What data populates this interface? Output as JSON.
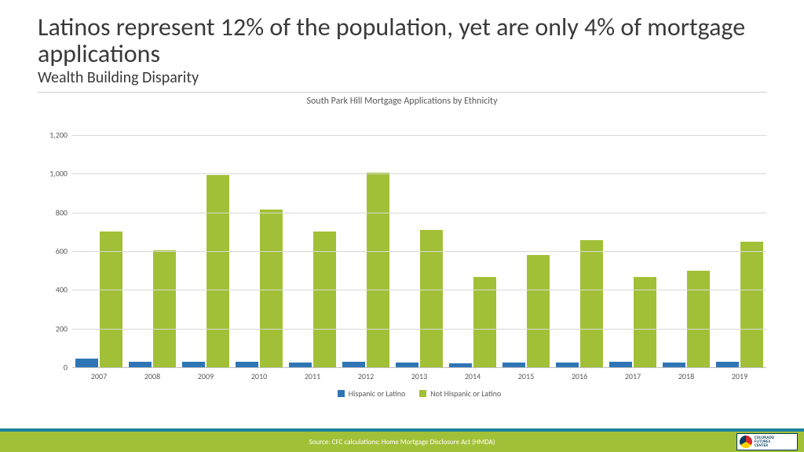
{
  "title": "Latinos represent 12% of the population, yet are only 4% of mortgage applications",
  "subtitle": "Wealth Building Disparity",
  "chart": {
    "type": "bar",
    "title": "South Park Hill Mortgage Applications by Ethnicity",
    "title_fontsize": 12,
    "categories": [
      "2007",
      "2008",
      "2009",
      "2010",
      "2011",
      "2012",
      "2013",
      "2014",
      "2015",
      "2016",
      "2017",
      "2018",
      "2019"
    ],
    "series": [
      {
        "name": "Hispanic or Latino",
        "color": "#2e75b6",
        "values": [
          45,
          28,
          30,
          30,
          25,
          30,
          25,
          22,
          25,
          25,
          30,
          25,
          30
        ]
      },
      {
        "name": "Not Hispanic or Latino",
        "color": "#a2c037",
        "values": [
          700,
          605,
          995,
          815,
          700,
          1005,
          710,
          465,
          580,
          655,
          465,
          500,
          650
        ]
      }
    ],
    "ylim": [
      0,
      1200
    ],
    "ytick_step": 200,
    "ytick_labels": [
      "0",
      "200",
      "400",
      "600",
      "800",
      "1,000",
      "1,200"
    ],
    "grid_color": "#d9d9d9",
    "axis_color": "#bfbfbf",
    "background_color": "#ffffff",
    "label_color": "#595959",
    "label_fontsize": 10,
    "bar_width": 0.42
  },
  "title_fontsize": 32,
  "subtitle_fontsize": 20,
  "title_color": "#3a3a3a",
  "footer": {
    "source": "Source: CFC calculations; Home Mortgage Disclosure Act (HMDA)",
    "source_fontsize": 9,
    "top_bar_color": "#1f82a0",
    "main_bar_color": "#a2c037",
    "logo_text": "COLORADO\nFUTURES\nCENTER"
  }
}
